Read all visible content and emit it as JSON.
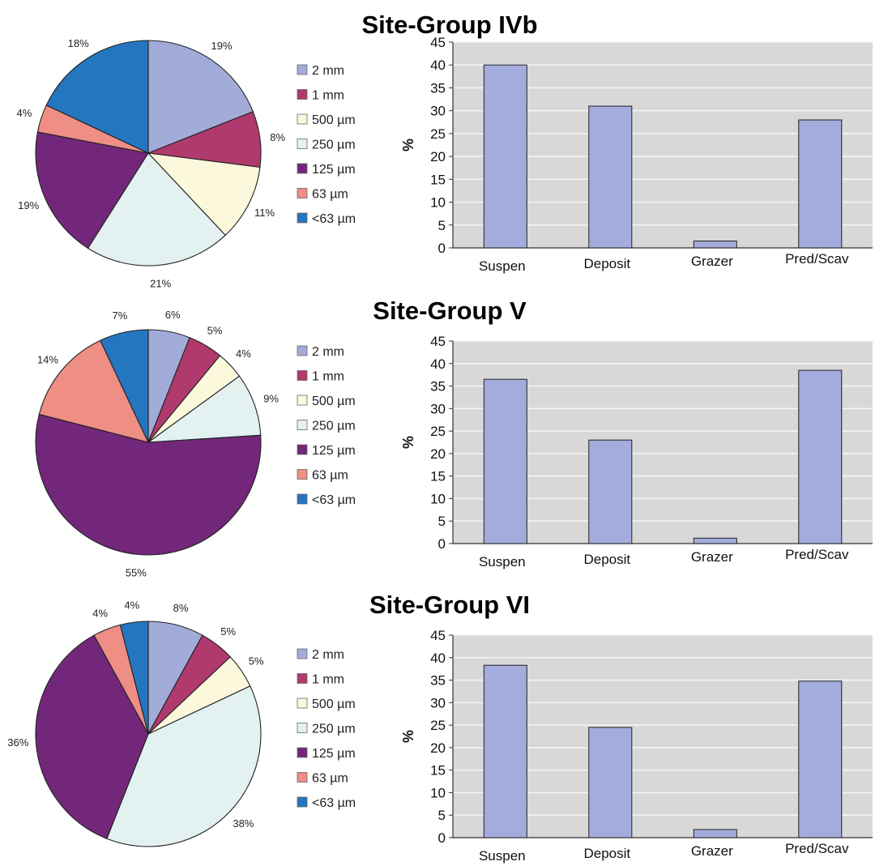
{
  "colors": {
    "2 mm": "#a3acd9",
    "1 mm": "#b03a6d",
    "500 µm": "#fbf8dc",
    "250 µm": "#e3f1f1",
    "125 µm": "#72277a",
    "63 µm": "#ee8e84",
    "<63 µm": "#2476bf",
    "bar_fill": "#a3acdc",
    "plot_bg": "#d8d8d8"
  },
  "chart_data": [
    {
      "type": "pie",
      "panel": "Site-Group IVb",
      "categories": [
        "2 mm",
        "1 mm",
        "500 µm",
        "250 µm",
        "125 µm",
        "63 µm",
        "<63 µm"
      ],
      "values": [
        19,
        8,
        11,
        21,
        19,
        4,
        18
      ],
      "labels": [
        "19%",
        "8%",
        "11%",
        "21%",
        "19%",
        "4%",
        "18%"
      ],
      "legend": "right"
    },
    {
      "type": "bar",
      "title": "Site-Group IVb",
      "categories": [
        "Suspen",
        "Deposit",
        "Grazer",
        "Pred/Scav"
      ],
      "values": [
        40,
        31,
        1.5,
        28
      ],
      "ylabel": "%",
      "ylim": [
        0,
        45
      ],
      "yticks": [
        "0",
        "5",
        "10",
        "15",
        "20",
        "25",
        "30",
        "35",
        "40",
        "45"
      ],
      "grid": true
    },
    {
      "type": "pie",
      "panel": "Site-Group V",
      "categories": [
        "2 mm",
        "1 mm",
        "500 µm",
        "250 µm",
        "125 µm",
        "63 µm",
        "<63 µm"
      ],
      "values": [
        6,
        5,
        4,
        9,
        55,
        14,
        7
      ],
      "labels": [
        "6%",
        "5%",
        "4%",
        "9%",
        "55%",
        "14%",
        "7%"
      ],
      "legend": "right"
    },
    {
      "type": "bar",
      "title": "Site-Group V",
      "categories": [
        "Suspen",
        "Deposit",
        "Grazer",
        "Pred/Scav"
      ],
      "values": [
        36.5,
        23,
        1.2,
        38.5
      ],
      "ylabel": "%",
      "ylim": [
        0,
        45
      ],
      "yticks": [
        "0",
        "5",
        "10",
        "15",
        "20",
        "25",
        "30",
        "35",
        "40",
        "45"
      ],
      "grid": true
    },
    {
      "type": "pie",
      "panel": "Site-Group VI",
      "categories": [
        "2 mm",
        "1 mm",
        "500 µm",
        "250 µm",
        "125 µm",
        "63 µm",
        "<63 µm"
      ],
      "values": [
        8,
        5,
        5,
        38,
        36,
        4,
        4
      ],
      "labels": [
        "8%",
        "5%",
        "5%",
        "38%",
        "36%",
        "4%",
        "4%"
      ],
      "legend": "right"
    },
    {
      "type": "bar",
      "title": "Site-Group VI",
      "categories": [
        "Suspen",
        "Deposit",
        "Grazer",
        "Pred/Scav"
      ],
      "values": [
        38.3,
        24.5,
        1.8,
        34.8
      ],
      "ylabel": "%",
      "ylim": [
        0,
        45
      ],
      "yticks": [
        "0",
        "5",
        "10",
        "15",
        "20",
        "25",
        "30",
        "35",
        "40",
        "45"
      ],
      "grid": true
    }
  ]
}
